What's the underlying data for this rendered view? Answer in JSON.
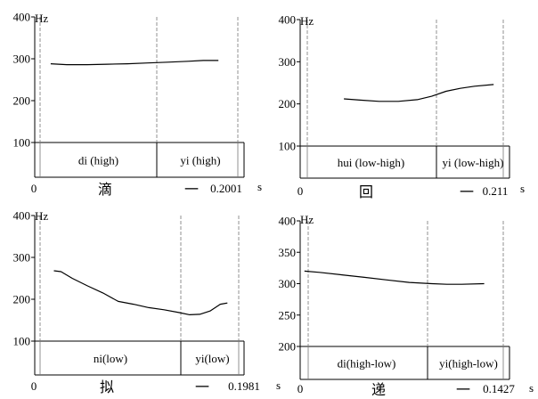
{
  "chart_data": [
    {
      "type": "line",
      "yunit": "Hz",
      "yticks": [
        100,
        200,
        300,
        400
      ],
      "ylim": [
        0,
        400
      ],
      "xlim": [
        0,
        0.2001
      ],
      "xticks": [
        "0",
        "0.2001"
      ],
      "xunit": "s",
      "annotation_row": [
        "di (high)",
        "yi (high)"
      ],
      "characters": [
        "滴",
        "一"
      ],
      "series": [
        {
          "x": [
            0.014,
            0.03,
            0.05,
            0.07,
            0.09,
            0.11,
            0.13,
            0.15,
            0.165,
            0.18
          ],
          "y": [
            288,
            286,
            286,
            287,
            288,
            290,
            292,
            294,
            296,
            296
          ]
        }
      ]
    },
    {
      "type": "line",
      "yunit": "Hz",
      "yticks": [
        100,
        200,
        300,
        400
      ],
      "ylim": [
        0,
        400
      ],
      "xlim": [
        0,
        0.211
      ],
      "xticks": [
        "0",
        "0.211"
      ],
      "xunit": "s",
      "annotation_row": [
        "hui (low-high)",
        "yi (low-high)"
      ],
      "characters": [
        "回",
        "一"
      ],
      "series": [
        {
          "x": [
            0.043,
            0.06,
            0.08,
            0.1,
            0.12,
            0.135,
            0.15,
            0.165,
            0.18,
            0.2
          ],
          "y": [
            212,
            209,
            206,
            206,
            210,
            218,
            230,
            237,
            242,
            246
          ]
        }
      ]
    },
    {
      "type": "line",
      "yunit": "Hz",
      "yticks": [
        100,
        200,
        300,
        400
      ],
      "ylim": [
        0,
        400
      ],
      "xlim": [
        0,
        0.1981
      ],
      "xticks": [
        "0",
        "0.1981"
      ],
      "xunit": "s",
      "annotation_row": [
        "ni(low)",
        "yi(low)"
      ],
      "characters": [
        "拟",
        "一"
      ],
      "series": [
        {
          "x": [
            0.017,
            0.024,
            0.035,
            0.05,
            0.065,
            0.08,
            0.095,
            0.11,
            0.125,
            0.14,
            0.15,
            0.16,
            0.17,
            0.18,
            0.187
          ],
          "y": [
            268,
            266,
            250,
            232,
            215,
            195,
            188,
            180,
            175,
            168,
            163,
            164,
            172,
            188,
            191
          ]
        }
      ]
    },
    {
      "type": "line",
      "yunit": "Hz",
      "yticks": [
        200,
        250,
        300,
        350,
        400
      ],
      "ylim": [
        150,
        400
      ],
      "xlim": [
        0,
        0.1427
      ],
      "xticks": [
        "0",
        "0.1427"
      ],
      "xunit": "s",
      "annotation_row": [
        "di(high-low)",
        "yi(high-low)"
      ],
      "characters": [
        "递",
        "一"
      ],
      "series": [
        {
          "x": [
            0.01,
            0.02,
            0.035,
            0.05,
            0.065,
            0.08,
            0.095,
            0.105,
            0.115,
            0.13
          ],
          "y": [
            320,
            318,
            314,
            310,
            306,
            302,
            300,
            299,
            299,
            300
          ]
        }
      ]
    }
  ]
}
